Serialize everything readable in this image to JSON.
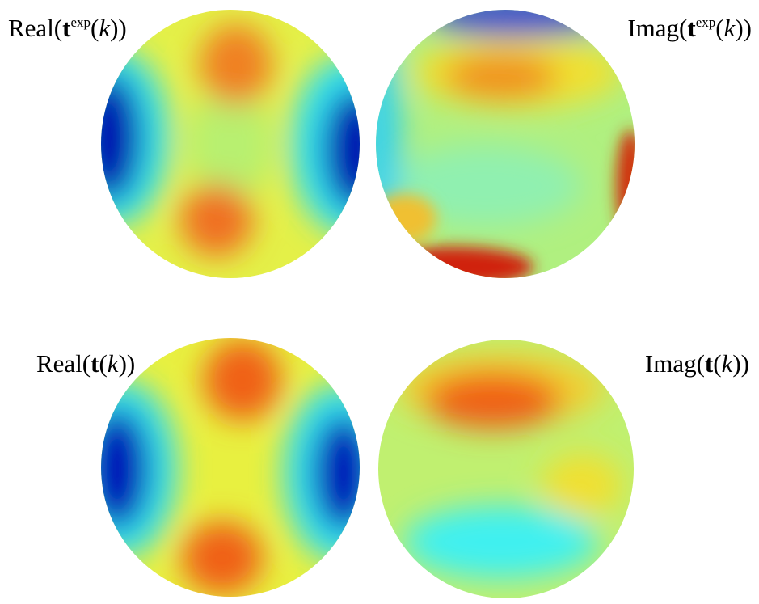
{
  "panels": [
    {
      "label": [
        "Real(",
        "t",
        "exp",
        "(",
        "k",
        "))"
      ]
    },
    {
      "label": [
        "Imag(",
        "t",
        "exp",
        "(",
        "k",
        "))"
      ]
    },
    {
      "label": [
        "Real(",
        "t",
        "(",
        "k",
        "))"
      ]
    },
    {
      "label": [
        "Imag(",
        "t",
        "(",
        "k",
        "))"
      ]
    }
  ]
}
